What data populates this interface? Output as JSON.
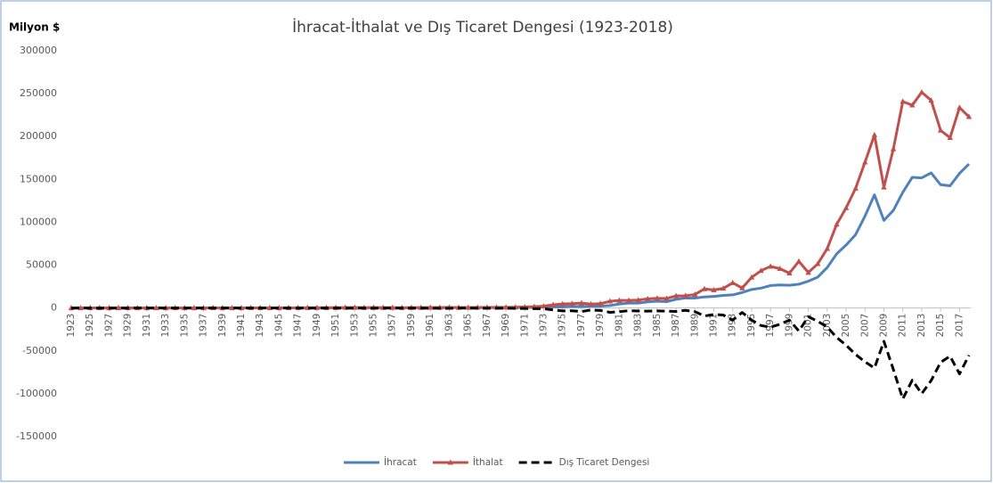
{
  "chart_data": {
    "type": "line",
    "title": "İhracat-İthalat ve Dış Ticaret Dengesi (1923-2018)",
    "y_label": "Milyon $",
    "x": [
      1923,
      1924,
      1925,
      1926,
      1927,
      1928,
      1929,
      1930,
      1931,
      1932,
      1933,
      1934,
      1935,
      1936,
      1937,
      1938,
      1939,
      1940,
      1941,
      1942,
      1943,
      1944,
      1945,
      1946,
      1947,
      1948,
      1949,
      1950,
      1951,
      1952,
      1953,
      1954,
      1955,
      1956,
      1957,
      1958,
      1959,
      1960,
      1961,
      1962,
      1963,
      1964,
      1965,
      1966,
      1967,
      1968,
      1969,
      1970,
      1971,
      1972,
      1973,
      1974,
      1975,
      1976,
      1977,
      1978,
      1979,
      1980,
      1981,
      1982,
      1983,
      1984,
      1985,
      1986,
      1987,
      1988,
      1989,
      1990,
      1991,
      1992,
      1993,
      1994,
      1995,
      1996,
      1997,
      1998,
      1999,
      2000,
      2001,
      2002,
      2003,
      2004,
      2005,
      2006,
      2007,
      2008,
      2009,
      2010,
      2011,
      2012,
      2013,
      2014,
      2015,
      2016,
      2017,
      2018
    ],
    "xlim": [
      1923,
      2018
    ],
    "xticks": [
      1923,
      1925,
      1927,
      1929,
      1931,
      1933,
      1935,
      1937,
      1939,
      1941,
      1943,
      1945,
      1947,
      1949,
      1951,
      1953,
      1955,
      1957,
      1959,
      1961,
      1963,
      1965,
      1967,
      1969,
      1971,
      1973,
      1975,
      1977,
      1979,
      1981,
      1983,
      1985,
      1987,
      1989,
      1991,
      1993,
      1995,
      1997,
      1999,
      2001,
      2003,
      2005,
      2007,
      2009,
      2011,
      2013,
      2015,
      2017
    ],
    "ylim": [
      -150000,
      300000
    ],
    "yticks": [
      -150000,
      -100000,
      -50000,
      0,
      50000,
      100000,
      150000,
      200000,
      250000,
      300000
    ],
    "legend": "bottom",
    "series": [
      {
        "name": "İhracat",
        "color": "#4f81bd",
        "dash": false,
        "marker": "none",
        "values": [
          51,
          82,
          102,
          96,
          80,
          88,
          75,
          72,
          60,
          48,
          46,
          73,
          76,
          94,
          109,
          115,
          100,
          81,
          92,
          127,
          197,
          178,
          168,
          215,
          223,
          197,
          248,
          263,
          315,
          363,
          396,
          335,
          313,
          305,
          345,
          247,
          354,
          321,
          347,
          381,
          368,
          411,
          464,
          490,
          523,
          496,
          537,
          588,
          677,
          885,
          1317,
          1532,
          1401,
          1960,
          1753,
          2288,
          2261,
          2910,
          4703,
          5746,
          5728,
          7134,
          7958,
          7457,
          10190,
          11662,
          11625,
          12959,
          13593,
          14715,
          15345,
          18106,
          21637,
          23225,
          26261,
          26974,
          26587,
          27775,
          31334,
          36059,
          47253,
          63167,
          73476,
          85535,
          107272,
          132027,
          102143,
          113883,
          134907,
          152462,
          151803,
          157610,
          143839,
          142530,
          156993,
          167921
        ]
      },
      {
        "name": "İthalat",
        "color": "#c0504d",
        "dash": false,
        "marker": "triangle",
        "values": [
          87,
          100,
          129,
          118,
          106,
          109,
          124,
          70,
          60,
          43,
          38,
          55,
          70,
          74,
          91,
          119,
          92,
          50,
          55,
          113,
          155,
          127,
          97,
          119,
          245,
          275,
          290,
          286,
          402,
          556,
          533,
          478,
          498,
          407,
          397,
          315,
          470,
          468,
          507,
          619,
          688,
          537,
          572,
          718,
          685,
          764,
          801,
          948,
          1171,
          1563,
          2086,
          3778,
          4739,
          5129,
          5796,
          4599,
          5069,
          7909,
          8933,
          8843,
          9235,
          10757,
          11343,
          11105,
          14158,
          14335,
          15792,
          22302,
          21047,
          22871,
          29428,
          23270,
          35709,
          43627,
          48559,
          45921,
          40671,
          54503,
          41399,
          51554,
          69340,
          97540,
          116774,
          139576,
          170063,
          201964,
          140928,
          185544,
          240842,
          236545,
          251661,
          242177,
          207234,
          198618,
          233800,
          223047
        ]
      },
      {
        "name": "Dış Ticaret Dengesi",
        "color": "#000000",
        "dash": true,
        "marker": "none",
        "values": [
          -36,
          -18,
          -27,
          -22,
          -26,
          -21,
          -49,
          2,
          0,
          5,
          8,
          18,
          6,
          20,
          18,
          -4,
          8,
          31,
          37,
          14,
          42,
          51,
          71,
          96,
          -22,
          -78,
          -42,
          -23,
          -87,
          -193,
          -137,
          -143,
          -185,
          -102,
          -52,
          -68,
          -116,
          -147,
          -160,
          -238,
          -320,
          -126,
          -108,
          -228,
          -162,
          -268,
          -264,
          -360,
          -494,
          -678,
          -769,
          -2246,
          -3338,
          -3169,
          -4043,
          -2311,
          -2808,
          -4999,
          -4230,
          -3097,
          -3507,
          -3623,
          -3385,
          -3648,
          -3968,
          -2673,
          -4167,
          -9343,
          -7454,
          -8156,
          -14083,
          -5164,
          -14072,
          -20402,
          -22298,
          -18947,
          -14084,
          -26728,
          -10065,
          -15495,
          -22087,
          -34373,
          -43298,
          -54041,
          -62791,
          -69937,
          -38785,
          -71661,
          -105935,
          -84083,
          -99858,
          -84567,
          -63395,
          -56088,
          -76807,
          -55126
        ]
      }
    ]
  }
}
